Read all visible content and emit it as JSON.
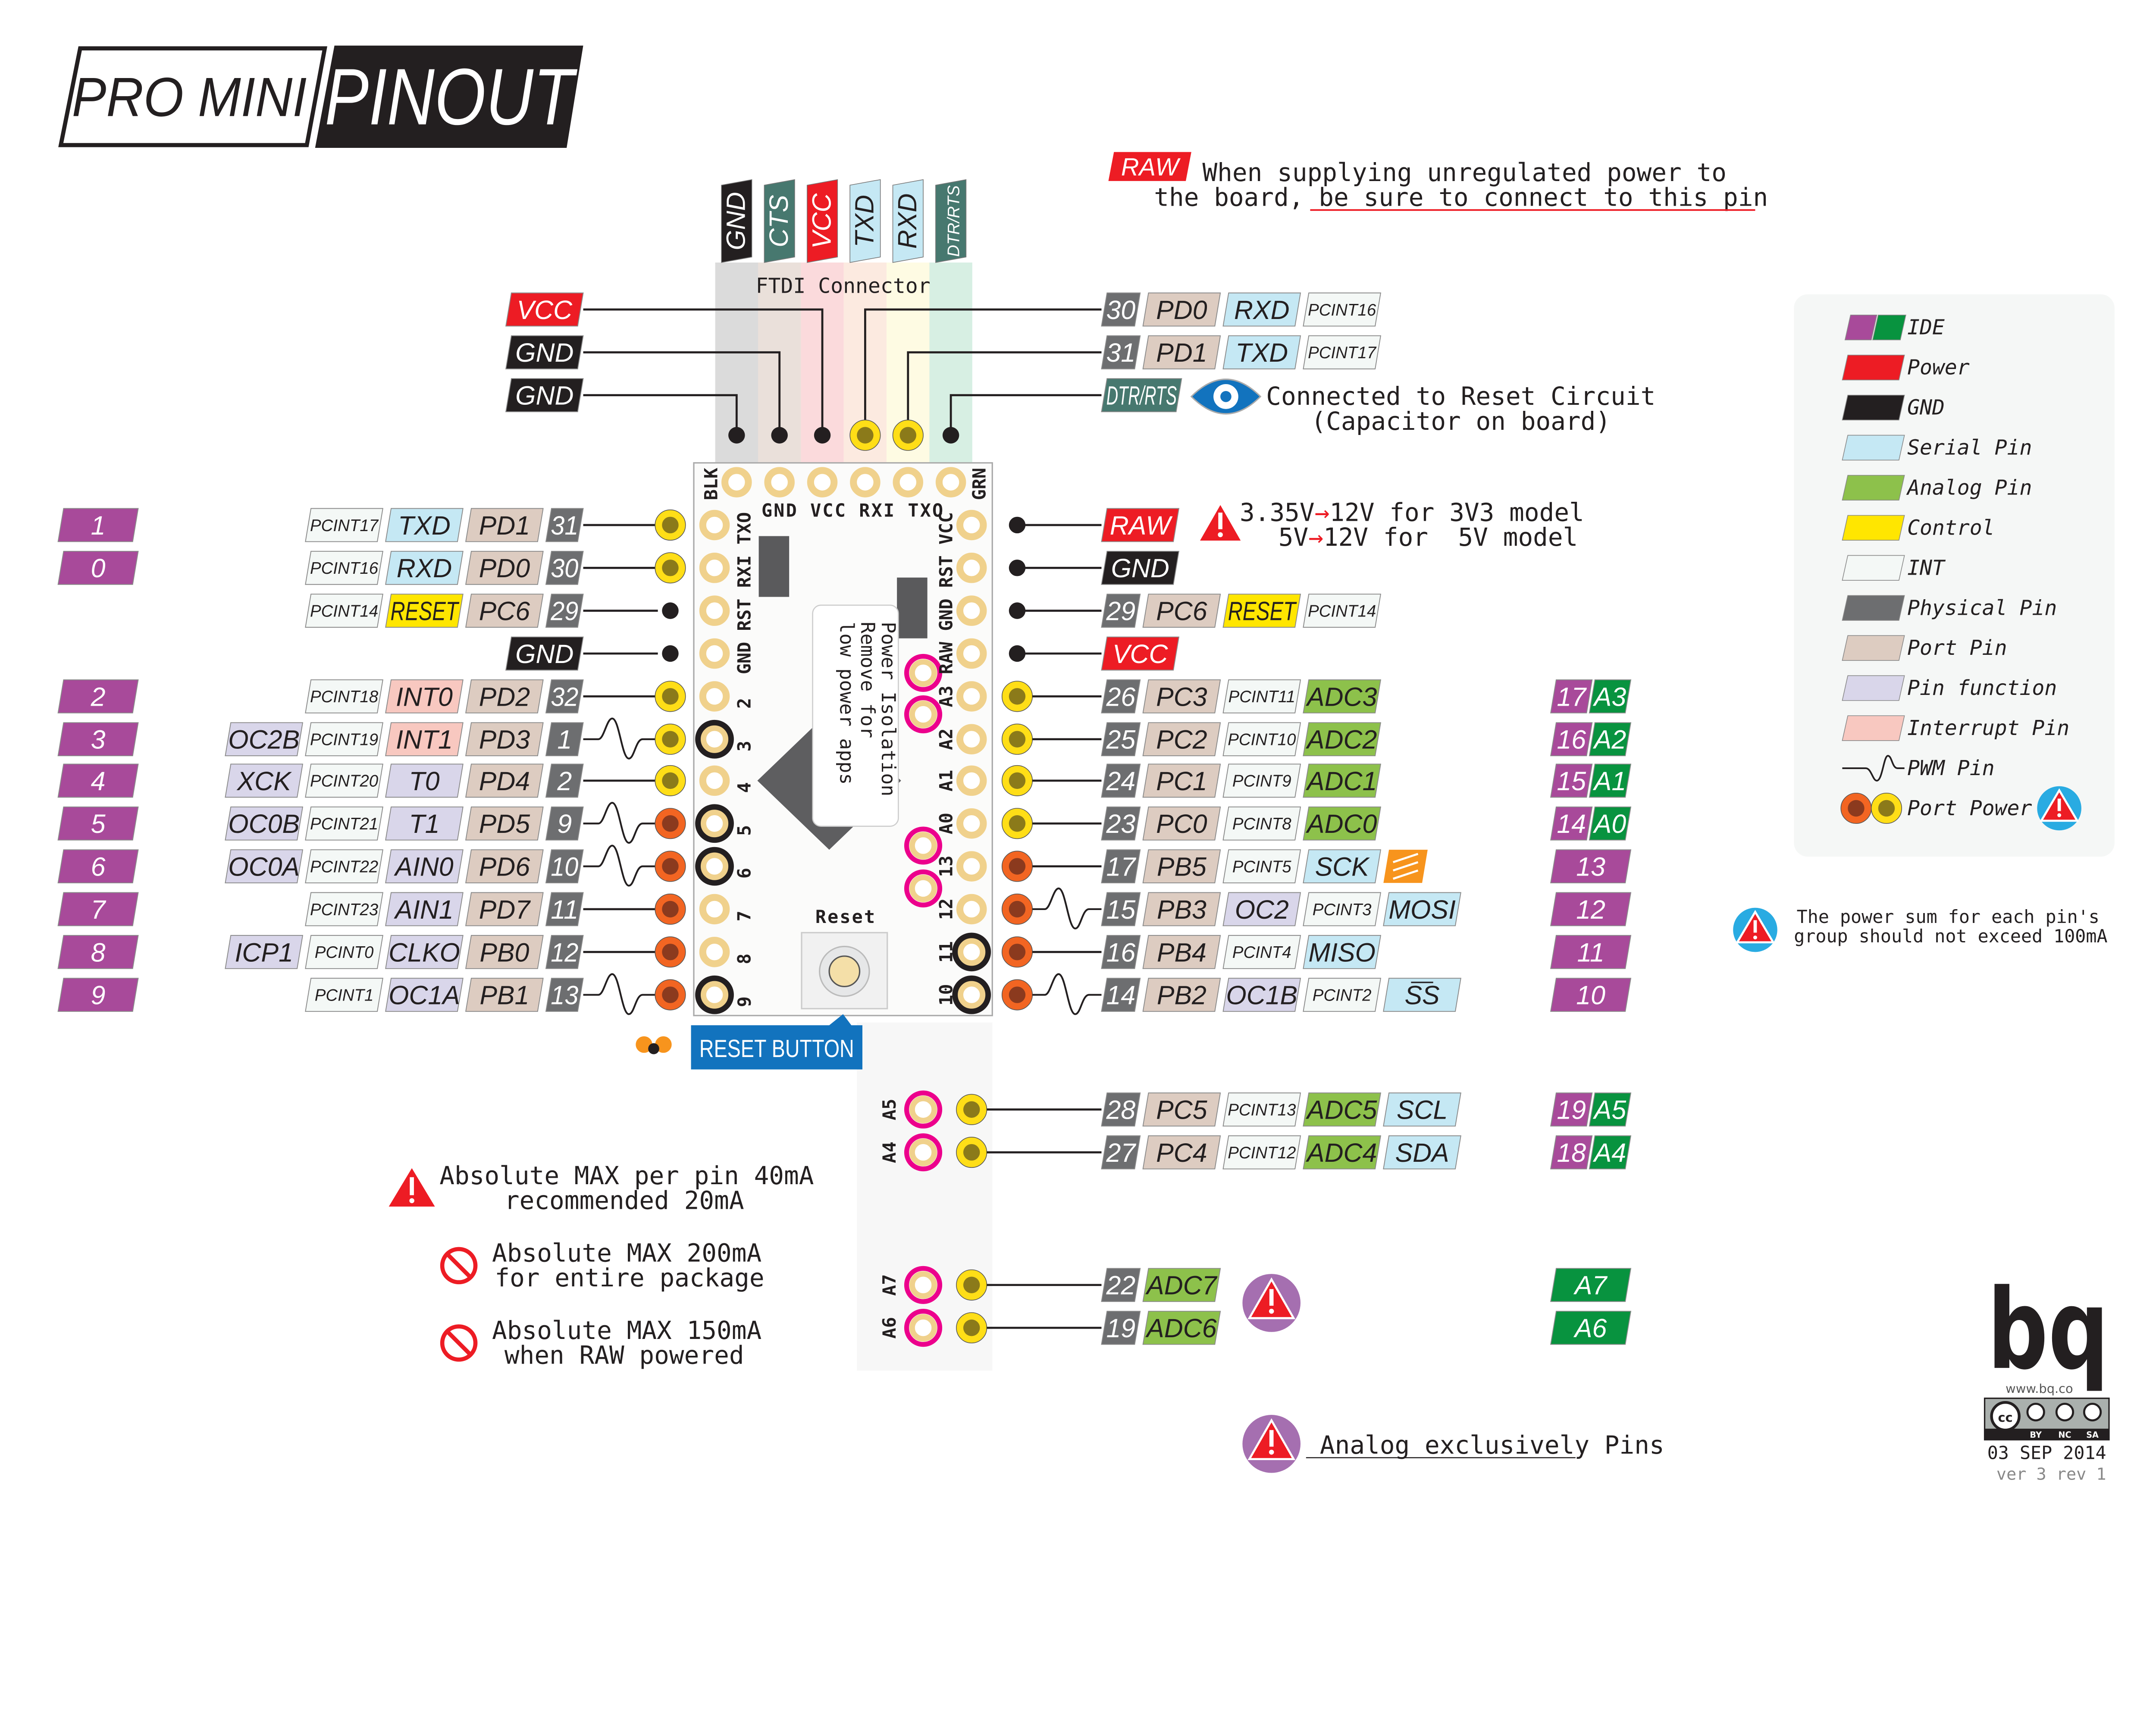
{
  "title": {
    "pro_mini": "PRO MINI",
    "pinout": "PINOUT"
  },
  "colors": {
    "ide_purple": "#a84a9a",
    "ide_green": "#08933f",
    "power": "#ed1c24",
    "gnd": "#231f20",
    "serial": "#c5e8f4",
    "analog": "#8dc14b",
    "control": "#ffe600",
    "int": "#f4f8f6",
    "physical": "#6d6e70",
    "port": "#ddccc1",
    "func": "#d9d6ea",
    "interrupt": "#f8c8c0",
    "teal": "#47786f",
    "spi": "#f7941d",
    "pad": "#f0d18c",
    "magenta": "#ec008c",
    "pin_yellow": "#ffde17",
    "pin_orange": "#f26522",
    "reset_blue": "#1273be"
  },
  "raw_note": {
    "chip": "RAW",
    "line1": "When supplying unregulated power to",
    "line2": "the board, be sure to connect to this pin"
  },
  "ftdi": {
    "header": [
      {
        "t": "GND",
        "k": "gnd"
      },
      {
        "t": "CTS",
        "k": "teal"
      },
      {
        "t": "VCC",
        "k": "power"
      },
      {
        "t": "TXD",
        "k": "serial"
      },
      {
        "t": "RXD",
        "k": "serial"
      },
      {
        "t": "DTR/RTS",
        "k": "teal"
      }
    ],
    "caption": "FTDI Connector",
    "left": [
      {
        "t": "VCC",
        "k": "power"
      },
      {
        "t": "GND",
        "k": "gnd"
      },
      {
        "t": "GND",
        "k": "gnd"
      }
    ],
    "right_rows": [
      {
        "chips": [
          {
            "t": "30",
            "k": "physical"
          },
          {
            "t": "PD0",
            "k": "port"
          },
          {
            "t": "RXD",
            "k": "serial"
          },
          {
            "t": "PCINT16",
            "k": "int"
          }
        ]
      },
      {
        "chips": [
          {
            "t": "31",
            "k": "physical"
          },
          {
            "t": "PD1",
            "k": "port"
          },
          {
            "t": "TXD",
            "k": "serial"
          },
          {
            "t": "PCINT17",
            "k": "int"
          }
        ]
      }
    ],
    "dtr": {
      "t": "DTR/RTS",
      "k": "teal"
    },
    "dtr_note1": "Connected to Reset Circuit",
    "dtr_note2": "(Capacitor on board)"
  },
  "voltage_note": {
    "a1": "3.35V",
    "b1": "12V for 3V3 model",
    "a2": "5V",
    "b2": "12V for  5V model"
  },
  "left_rows": [
    {
      "ide": "1",
      "chips": [
        {
          "t": "PCINT17",
          "k": "int"
        },
        {
          "t": "TXD",
          "k": "serial"
        },
        {
          "t": "PD1",
          "k": "port"
        },
        {
          "t": "31",
          "k": "physical"
        }
      ],
      "pin": "yellow",
      "pwm": false
    },
    {
      "ide": "0",
      "chips": [
        {
          "t": "PCINT16",
          "k": "int"
        },
        {
          "t": "RXD",
          "k": "serial"
        },
        {
          "t": "PD0",
          "k": "port"
        },
        {
          "t": "30",
          "k": "physical"
        }
      ],
      "pin": "yellow",
      "pwm": false
    },
    {
      "chips": [
        {
          "t": "PCINT14",
          "k": "int"
        },
        {
          "t": "RESET",
          "k": "control"
        },
        {
          "t": "PC6",
          "k": "port"
        },
        {
          "t": "29",
          "k": "physical"
        }
      ],
      "pin": "black",
      "pwm": false
    },
    {
      "chips": [
        {
          "t": "GND",
          "k": "gnd"
        }
      ],
      "pin": "black",
      "pwm": false
    },
    {
      "ide": "2",
      "chips": [
        {
          "t": "PCINT18",
          "k": "int"
        },
        {
          "t": "INT0",
          "k": "interrupt"
        },
        {
          "t": "PD2",
          "k": "port"
        },
        {
          "t": "32",
          "k": "physical"
        }
      ],
      "pin": "yellow",
      "pwm": false
    },
    {
      "ide": "3",
      "chips": [
        {
          "t": "OC2B",
          "k": "func"
        },
        {
          "t": "PCINT19",
          "k": "int"
        },
        {
          "t": "INT1",
          "k": "interrupt"
        },
        {
          "t": "PD3",
          "k": "port"
        },
        {
          "t": "1",
          "k": "physical"
        }
      ],
      "pin": "yellow",
      "pwm": true
    },
    {
      "ide": "4",
      "chips": [
        {
          "t": "XCK",
          "k": "func"
        },
        {
          "t": "PCINT20",
          "k": "int"
        },
        {
          "t": "T0",
          "k": "func"
        },
        {
          "t": "PD4",
          "k": "port"
        },
        {
          "t": "2",
          "k": "physical"
        }
      ],
      "pin": "yellow",
      "pwm": false
    },
    {
      "ide": "5",
      "chips": [
        {
          "t": "OC0B",
          "k": "func"
        },
        {
          "t": "PCINT21",
          "k": "int"
        },
        {
          "t": "T1",
          "k": "func"
        },
        {
          "t": "PD5",
          "k": "port"
        },
        {
          "t": "9",
          "k": "physical"
        }
      ],
      "pin": "orange",
      "pwm": true
    },
    {
      "ide": "6",
      "chips": [
        {
          "t": "OC0A",
          "k": "func"
        },
        {
          "t": "PCINT22",
          "k": "int"
        },
        {
          "t": "AIN0",
          "k": "func"
        },
        {
          "t": "PD6",
          "k": "port"
        },
        {
          "t": "10",
          "k": "physical"
        }
      ],
      "pin": "orange",
      "pwm": true
    },
    {
      "ide": "7",
      "chips": [
        {
          "t": "PCINT23",
          "k": "int"
        },
        {
          "t": "AIN1",
          "k": "func"
        },
        {
          "t": "PD7",
          "k": "port"
        },
        {
          "t": "11",
          "k": "physical"
        }
      ],
      "pin": "orange",
      "pwm": false
    },
    {
      "ide": "8",
      "chips": [
        {
          "t": "ICP1",
          "k": "func"
        },
        {
          "t": "PCINT0",
          "k": "int"
        },
        {
          "t": "CLKO",
          "k": "func"
        },
        {
          "t": "PB0",
          "k": "port"
        },
        {
          "t": "12",
          "k": "physical"
        }
      ],
      "pin": "orange",
      "pwm": false
    },
    {
      "ide": "9",
      "chips": [
        {
          "t": "PCINT1",
          "k": "int"
        },
        {
          "t": "OC1A",
          "k": "func"
        },
        {
          "t": "PB1",
          "k": "port"
        },
        {
          "t": "13",
          "k": "physical"
        }
      ],
      "pin": "orange",
      "pwm": true
    }
  ],
  "right_rows": [
    {
      "chips": [
        {
          "t": "RAW",
          "k": "power"
        }
      ],
      "pin": "black",
      "pwm": false
    },
    {
      "chips": [
        {
          "t": "GND",
          "k": "gnd"
        }
      ],
      "pin": "black",
      "pwm": false
    },
    {
      "chips": [
        {
          "t": "29",
          "k": "physical"
        },
        {
          "t": "PC6",
          "k": "port"
        },
        {
          "t": "RESET",
          "k": "control"
        },
        {
          "t": "PCINT14",
          "k": "int"
        }
      ],
      "pin": "black",
      "pwm": false
    },
    {
      "chips": [
        {
          "t": "VCC",
          "k": "power"
        }
      ],
      "pin": "black",
      "pwm": false
    },
    {
      "chips": [
        {
          "t": "26",
          "k": "physical"
        },
        {
          "t": "PC3",
          "k": "port"
        },
        {
          "t": "PCINT11",
          "k": "int"
        },
        {
          "t": "ADC3",
          "k": "analog"
        }
      ],
      "pin": "yellow",
      "pwm": false,
      "ide_num": "17",
      "ide_analog": "A3"
    },
    {
      "chips": [
        {
          "t": "25",
          "k": "physical"
        },
        {
          "t": "PC2",
          "k": "port"
        },
        {
          "t": "PCINT10",
          "k": "int"
        },
        {
          "t": "ADC2",
          "k": "analog"
        }
      ],
      "pin": "yellow",
      "pwm": false,
      "ide_num": "16",
      "ide_analog": "A2"
    },
    {
      "chips": [
        {
          "t": "24",
          "k": "physical"
        },
        {
          "t": "PC1",
          "k": "port"
        },
        {
          "t": "PCINT9",
          "k": "int"
        },
        {
          "t": "ADC1",
          "k": "analog"
        }
      ],
      "pin": "yellow",
      "pwm": false,
      "ide_num": "15",
      "ide_analog": "A1"
    },
    {
      "chips": [
        {
          "t": "23",
          "k": "physical"
        },
        {
          "t": "PC0",
          "k": "port"
        },
        {
          "t": "PCINT8",
          "k": "int"
        },
        {
          "t": "ADC0",
          "k": "analog"
        }
      ],
      "pin": "yellow",
      "pwm": false,
      "ide_num": "14",
      "ide_analog": "A0"
    },
    {
      "chips": [
        {
          "t": "17",
          "k": "physical"
        },
        {
          "t": "PB5",
          "k": "port"
        },
        {
          "t": "PCINT5",
          "k": "int"
        },
        {
          "t": "SCK",
          "k": "serial"
        }
      ],
      "pin": "orange",
      "pwm": false,
      "ide_num": "13",
      "icon": "spi-arrows-icon"
    },
    {
      "chips": [
        {
          "t": "15",
          "k": "physical"
        },
        {
          "t": "PB3",
          "k": "port"
        },
        {
          "t": "OC2",
          "k": "func"
        },
        {
          "t": "PCINT3",
          "k": "int"
        },
        {
          "t": "MOSI",
          "k": "serial"
        }
      ],
      "pin": "orange",
      "pwm": true,
      "ide_num": "12"
    },
    {
      "chips": [
        {
          "t": "16",
          "k": "physical"
        },
        {
          "t": "PB4",
          "k": "port"
        },
        {
          "t": "PCINT4",
          "k": "int"
        },
        {
          "t": "MISO",
          "k": "serial"
        }
      ],
      "pin": "orange",
      "pwm": false,
      "ide_num": "11"
    },
    {
      "chips": [
        {
          "t": "14",
          "k": "physical"
        },
        {
          "t": "PB2",
          "k": "port"
        },
        {
          "t": "OC1B",
          "k": "func"
        },
        {
          "t": "PCINT2",
          "k": "int"
        },
        {
          "t": "SS",
          "k": "serial"
        }
      ],
      "pin": "orange",
      "pwm": true,
      "ide_num": "10"
    },
    {
      "chips": [
        {
          "t": "28",
          "k": "physical"
        },
        {
          "t": "PC5",
          "k": "port"
        },
        {
          "t": "PCINT13",
          "k": "int"
        },
        {
          "t": "ADC5",
          "k": "analog"
        },
        {
          "t": "SCL",
          "k": "serial"
        }
      ],
      "pin": "yellow",
      "pwm": false,
      "ide_num": "19",
      "ide_analog": "A5"
    },
    {
      "chips": [
        {
          "t": "27",
          "k": "physical"
        },
        {
          "t": "PC4",
          "k": "port"
        },
        {
          "t": "PCINT12",
          "k": "int"
        },
        {
          "t": "ADC4",
          "k": "analog"
        },
        {
          "t": "SDA",
          "k": "serial"
        }
      ],
      "pin": "yellow",
      "pwm": false,
      "ide_num": "18",
      "ide_analog": "A4"
    },
    {
      "chips": [
        {
          "t": "22",
          "k": "physical"
        },
        {
          "t": "ADC7",
          "k": "analog"
        }
      ],
      "pin": "yellow",
      "pwm": false,
      "ide_analog": "A7"
    },
    {
      "chips": [
        {
          "t": "19",
          "k": "physical"
        },
        {
          "t": "ADC6",
          "k": "analog"
        }
      ],
      "pin": "yellow",
      "pwm": false,
      "ide_analog": "A6"
    }
  ],
  "board": {
    "top_corner_left": "BLK",
    "top_corner_right": "GRN",
    "top_row": "GND VCC RXI TXO",
    "left_vertical": "GND RST RXI TXO",
    "right_vertical": "RAW GND RST VCC",
    "left_numbers": [
      "2",
      "3",
      "4",
      "5",
      "6",
      "7",
      "8",
      "9"
    ],
    "right_labels": [
      "A3",
      "A2",
      "A1",
      "A0",
      "13",
      "12",
      "11",
      "10"
    ],
    "lower_labels": [
      "A5",
      "A4",
      "A7",
      "A6"
    ],
    "reset_silk": "Reset",
    "callout": [
      "Power Isolation",
      "Remove for",
      "low power apps"
    ],
    "reset_button_label": "RESET BUTTON"
  },
  "legend": {
    "items": [
      {
        "label": "IDE",
        "kind": "ide"
      },
      {
        "label": "Power",
        "kind": "power"
      },
      {
        "label": "GND",
        "kind": "gnd"
      },
      {
        "label": "Serial Pin",
        "kind": "serial"
      },
      {
        "label": "Analog Pin",
        "kind": "analog"
      },
      {
        "label": "Control",
        "kind": "control"
      },
      {
        "label": "INT",
        "kind": "int"
      },
      {
        "label": "Physical Pin",
        "kind": "physical"
      },
      {
        "label": "Port Pin",
        "kind": "port"
      },
      {
        "label": "Pin function",
        "kind": "func"
      },
      {
        "label": "Interrupt Pin",
        "kind": "interrupt"
      },
      {
        "label": "PWM Pin",
        "kind": "pwm"
      },
      {
        "label": "Port Power",
        "kind": "portpower"
      }
    ]
  },
  "notes": {
    "group_line1": "The power sum for each pin's",
    "group_line2": "group should not exceed 100mA",
    "pin_max_line1": "Absolute MAX per pin 40mA",
    "pin_max_line2": "recommended 20mA",
    "package_line1": "Absolute MAX 200mA",
    "package_line2": "for entire package",
    "raw_line1": "Absolute MAX 150mA",
    "raw_line2": "when RAW powered",
    "analog_only": "Analog exclusively Pins"
  },
  "footer": {
    "logo": "bq",
    "url": "www.bq.co",
    "license": [
      "cc",
      "BY",
      "NC",
      "SA"
    ],
    "date": "03 SEP 2014",
    "version": "ver 3 rev 1"
  }
}
